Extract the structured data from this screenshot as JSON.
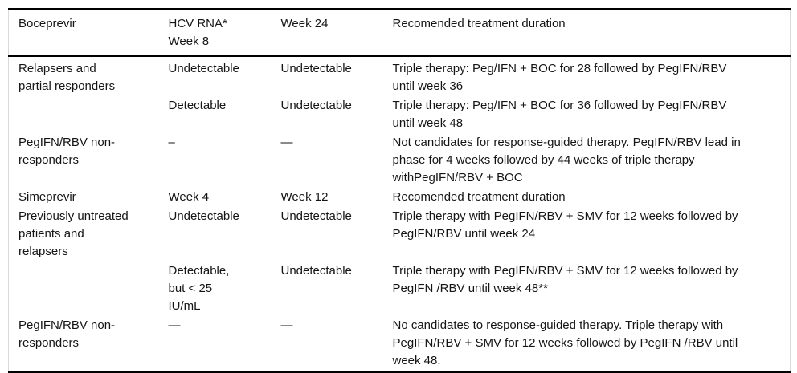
{
  "colors": {
    "background": "#ffffff",
    "text": "#151515",
    "rule": "#000000",
    "side_border": "#dadada"
  },
  "table": {
    "header": {
      "drug": "Boceprevir",
      "week8": "HCV RNA*\nWeek 8",
      "week24": "Week 24",
      "duration": "Recomended treatment duration"
    },
    "rows": [
      {
        "group": "Relapsers and\npartial responders",
        "week8": "Undetectable",
        "week24": "Undetectable",
        "duration": "Triple therapy: Peg/IFN + BOC for 28 followed by PegIFN/RBV\nuntil week 36"
      },
      {
        "group": "",
        "week8": "Detectable",
        "week24": "Undetectable",
        "duration": "Triple therapy: Peg/IFN + BOC for 36 followed by PegIFN/RBV\nuntil week 48"
      },
      {
        "group": "PegIFN/RBV non-\nresponders",
        "week8": "–",
        "week24": "—",
        "duration": "Not candidates for response-guided therapy. PegIFN/RBV lead in\nphase for 4 weeks followed by 44 weeks of triple therapy\nwithPegIFN/RBV + BOC"
      },
      {
        "group": "Simeprevir",
        "week8": "Week 4",
        "week24": "Week 12",
        "duration": "Recomended treatment duration"
      },
      {
        "group": "Previously untreated\npatients and\nrelapsers",
        "week8": "Undetectable",
        "week24": "Undetectable",
        "duration": "Triple therapy with PegIFN/RBV + SMV for 12 weeks followed by\nPegIFN/RBV until week 24"
      },
      {
        "group": "",
        "week8": "Detectable,\nbut < 25\nIU/mL",
        "week24": "Undetectable",
        "duration": "Triple therapy with PegIFN/RBV + SMV for 12 weeks followed by\nPegIFN /RBV until week 48**"
      },
      {
        "group": "PegIFN/RBV non-\nresponders",
        "week8": "—",
        "week24": "—",
        "duration": "No candidates to response-guided therapy. Triple therapy with\nPegIFN/RBV + SMV for 12 weeks followed by PegIFN /RBV until\nweek 48."
      }
    ]
  }
}
